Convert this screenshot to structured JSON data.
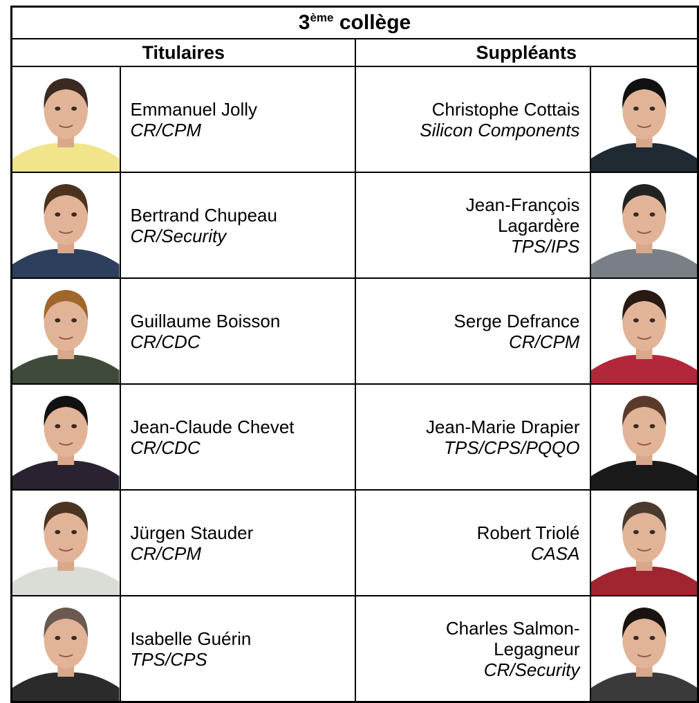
{
  "title": {
    "number": "3",
    "superscript": "ème",
    "text": "collège"
  },
  "headers": [
    "Titulaires",
    "Suppléants"
  ],
  "rows": [
    {
      "titulaire": {
        "name": [
          "Emmanuel Jolly"
        ],
        "unit": "CR/CPM"
      },
      "suppleant": {
        "name": [
          "Christophe Cottais"
        ],
        "unit": "Silicon Components"
      }
    },
    {
      "titulaire": {
        "name": [
          "Bertrand Chupeau"
        ],
        "unit": "CR/Security"
      },
      "suppleant": {
        "name": [
          "Jean-François",
          "Lagardère"
        ],
        "unit": "TPS/IPS"
      }
    },
    {
      "titulaire": {
        "name": [
          "Guillaume Boisson"
        ],
        "unit": "CR/CDC"
      },
      "suppleant": {
        "name": [
          "Serge Defrance"
        ],
        "unit": "CR/CPM"
      }
    },
    {
      "titulaire": {
        "name": [
          "Jean-Claude Chevet"
        ],
        "unit": "CR/CDC"
      },
      "suppleant": {
        "name": [
          "Jean-Marie Drapier"
        ],
        "unit": "TPS/CPS/PQQO"
      }
    },
    {
      "titulaire": {
        "name": [
          "Jürgen Stauder"
        ],
        "unit": "CR/CPM"
      },
      "suppleant": {
        "name": [
          "Robert Triolé"
        ],
        "unit": "CASA"
      }
    },
    {
      "titulaire": {
        "name": [
          "Isabelle Guérin"
        ],
        "unit": "TPS/CPS"
      },
      "suppleant": {
        "name": [
          "Charles Salmon-",
          "Legagneur"
        ],
        "unit": "CR/Security"
      }
    }
  ]
}
